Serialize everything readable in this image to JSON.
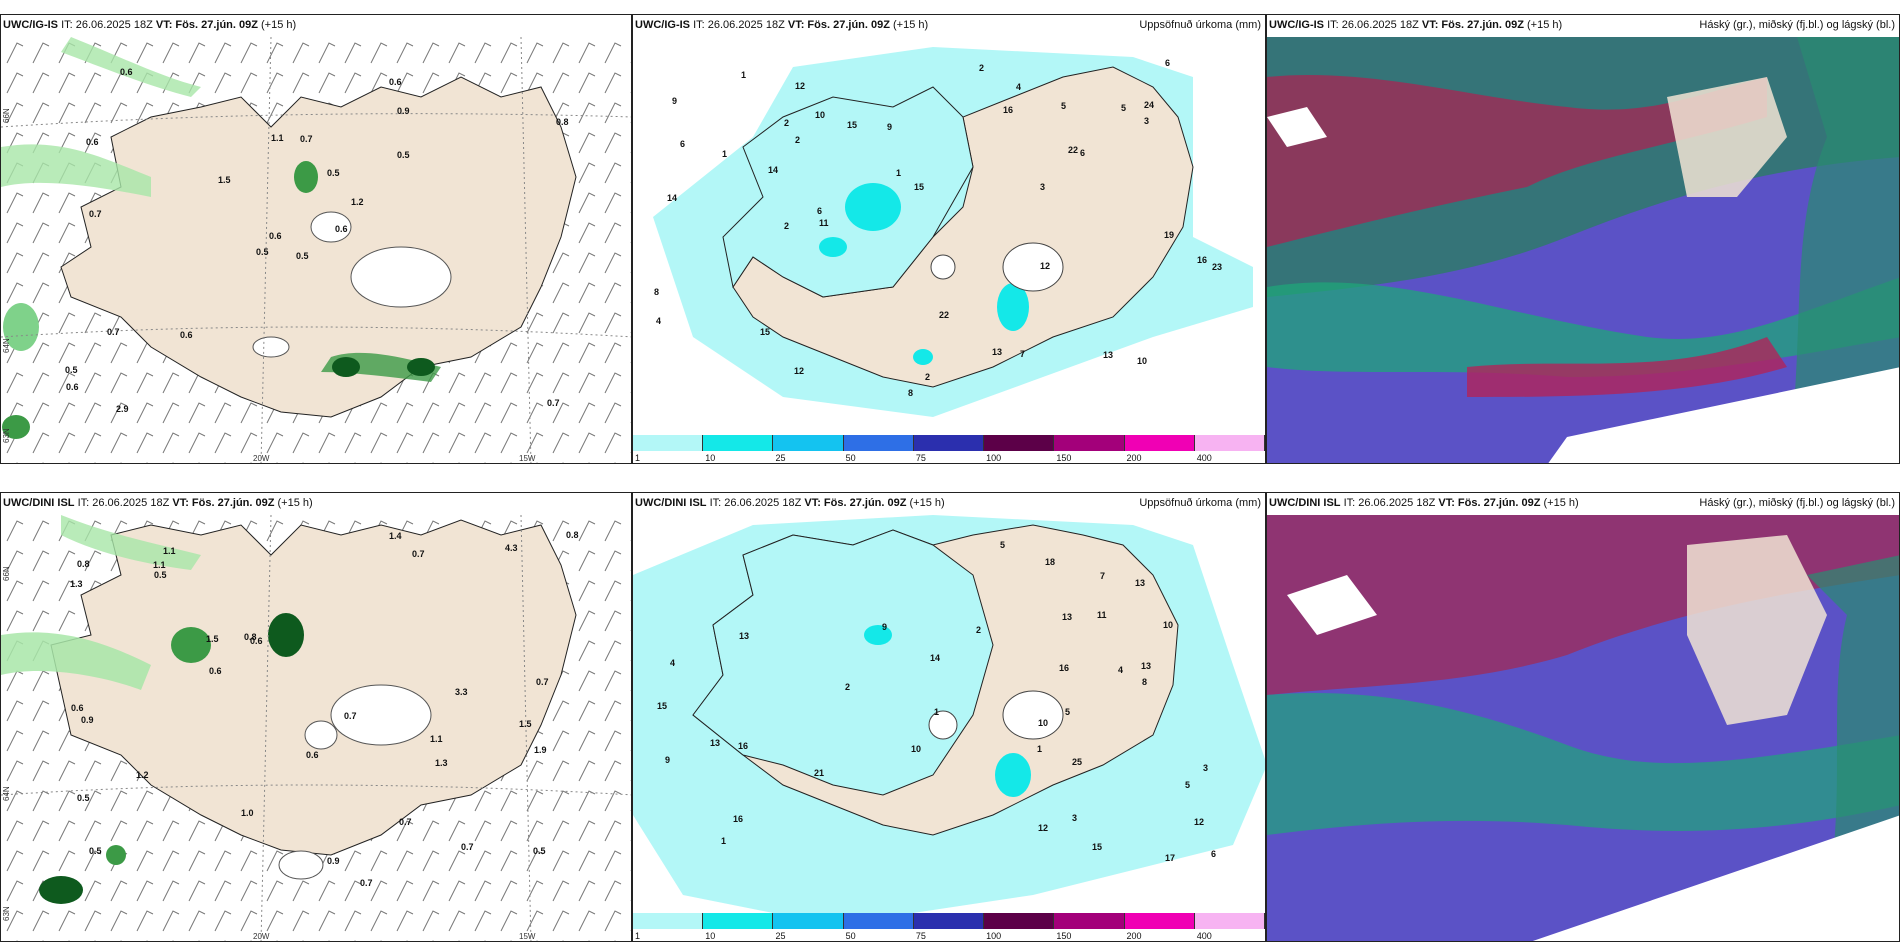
{
  "panels": [
    {
      "model": "UWC/IG-IS",
      "it": "IT: 26.06.2025 18Z",
      "vt_label": "VT:",
      "vt": "Fös. 27.jún. 09Z",
      "lead": "(+15 h)",
      "right": ""
    },
    {
      "model": "UWC/IG-IS",
      "it": "IT: 26.06.2025 18Z",
      "vt_label": "VT:",
      "vt": "Fös. 27.jún. 09Z",
      "lead": "(+15 h)",
      "right": "Uppsöfnuð úrkoma (mm)"
    },
    {
      "model": "UWC/IG-IS",
      "it": "IT: 26.06.2025 18Z",
      "vt_label": "VT:",
      "vt": "Fös. 27.jún. 09Z",
      "lead": "(+15 h)",
      "right": "Háský (gr.), miðský (fj.bl.) og lágský (bl.)"
    },
    {
      "model": "UWC/DINI ISL",
      "it": "IT: 26.06.2025 18Z",
      "vt_label": "VT:",
      "vt": "Fös. 27.jún. 09Z",
      "lead": "(+15 h)",
      "right": ""
    },
    {
      "model": "UWC/DINI ISL",
      "it": "IT: 26.06.2025 18Z",
      "vt_label": "VT:",
      "vt": "Fös. 27.jún. 09Z",
      "lead": "(+15 h)",
      "right": "Uppsöfnuð úrkoma (mm)"
    },
    {
      "model": "UWC/DINI ISL",
      "it": "IT: 26.06.2025 18Z",
      "vt_label": "VT:",
      "vt": "Fös. 27.jún. 09Z",
      "lead": "(+15 h)",
      "right": "Háský (gr.), miðský (fj.bl.) og lágský (bl.)"
    }
  ],
  "colorbar": {
    "colors": [
      "#b3f7f7",
      "#14e8e8",
      "#14c3f0",
      "#2e6fe6",
      "#2b2fae",
      "#5c0048",
      "#a3007a",
      "#f000b4",
      "#f7b3f2"
    ],
    "labels": [
      "1",
      "10",
      "25",
      "50",
      "75",
      "100",
      "150",
      "200",
      "400"
    ]
  },
  "axes": {
    "lat_66": "66N",
    "lat_64": "64N",
    "lat_63": "63N",
    "lon_20": "20W",
    "lon_15": "15W"
  },
  "wind_labels_top": [
    "0.5",
    "0.6",
    "0.6",
    "0.5",
    "1.2",
    "0.6",
    "0.6",
    "0.7",
    "0.9",
    "0.6",
    "0.6",
    "0.7",
    "0.7",
    "0.8",
    "0.5",
    "0.5",
    "2.9",
    "1.1",
    "0.5",
    "0.7",
    "1.5",
    "0.6"
  ],
  "wind_labels_bottom": [
    "1.1",
    "1.5",
    "0.5",
    "1.1",
    "0.6",
    "0.7",
    "0.5",
    "0.7",
    "1.5",
    "0.7",
    "1.3",
    "0.6",
    "0.8",
    "0.5",
    "1.0",
    "0.7",
    "0.6",
    "0.7",
    "0.8",
    "1.2",
    "0.8",
    "4.3",
    "0.6",
    "1.9",
    "1.4",
    "1.1",
    "1.3",
    "0.9",
    "0.5",
    "3.3",
    "0.9",
    "0.7"
  ],
  "precip_labels_top": [
    "6",
    "2",
    "3",
    "2",
    "5",
    "8",
    "12",
    "11",
    "24",
    "23",
    "16",
    "10",
    "22",
    "15",
    "14",
    "12",
    "6",
    "9",
    "10",
    "13",
    "13",
    "19",
    "15",
    "22",
    "5",
    "14",
    "3",
    "4",
    "1",
    "2",
    "8",
    "7",
    "6",
    "1",
    "9",
    "12",
    "15",
    "16",
    "2",
    "4",
    "6",
    "2",
    "1"
  ],
  "precip_labels_bottom": [
    "1",
    "3",
    "4",
    "5",
    "12",
    "11",
    "13",
    "14",
    "12",
    "15",
    "5",
    "10",
    "9",
    "25",
    "21",
    "17",
    "13",
    "13",
    "7",
    "9",
    "10",
    "15",
    "16",
    "18",
    "8",
    "16",
    "13",
    "13",
    "6",
    "16",
    "10",
    "5",
    "4",
    "3",
    "2",
    "1",
    "2",
    "1"
  ]
}
